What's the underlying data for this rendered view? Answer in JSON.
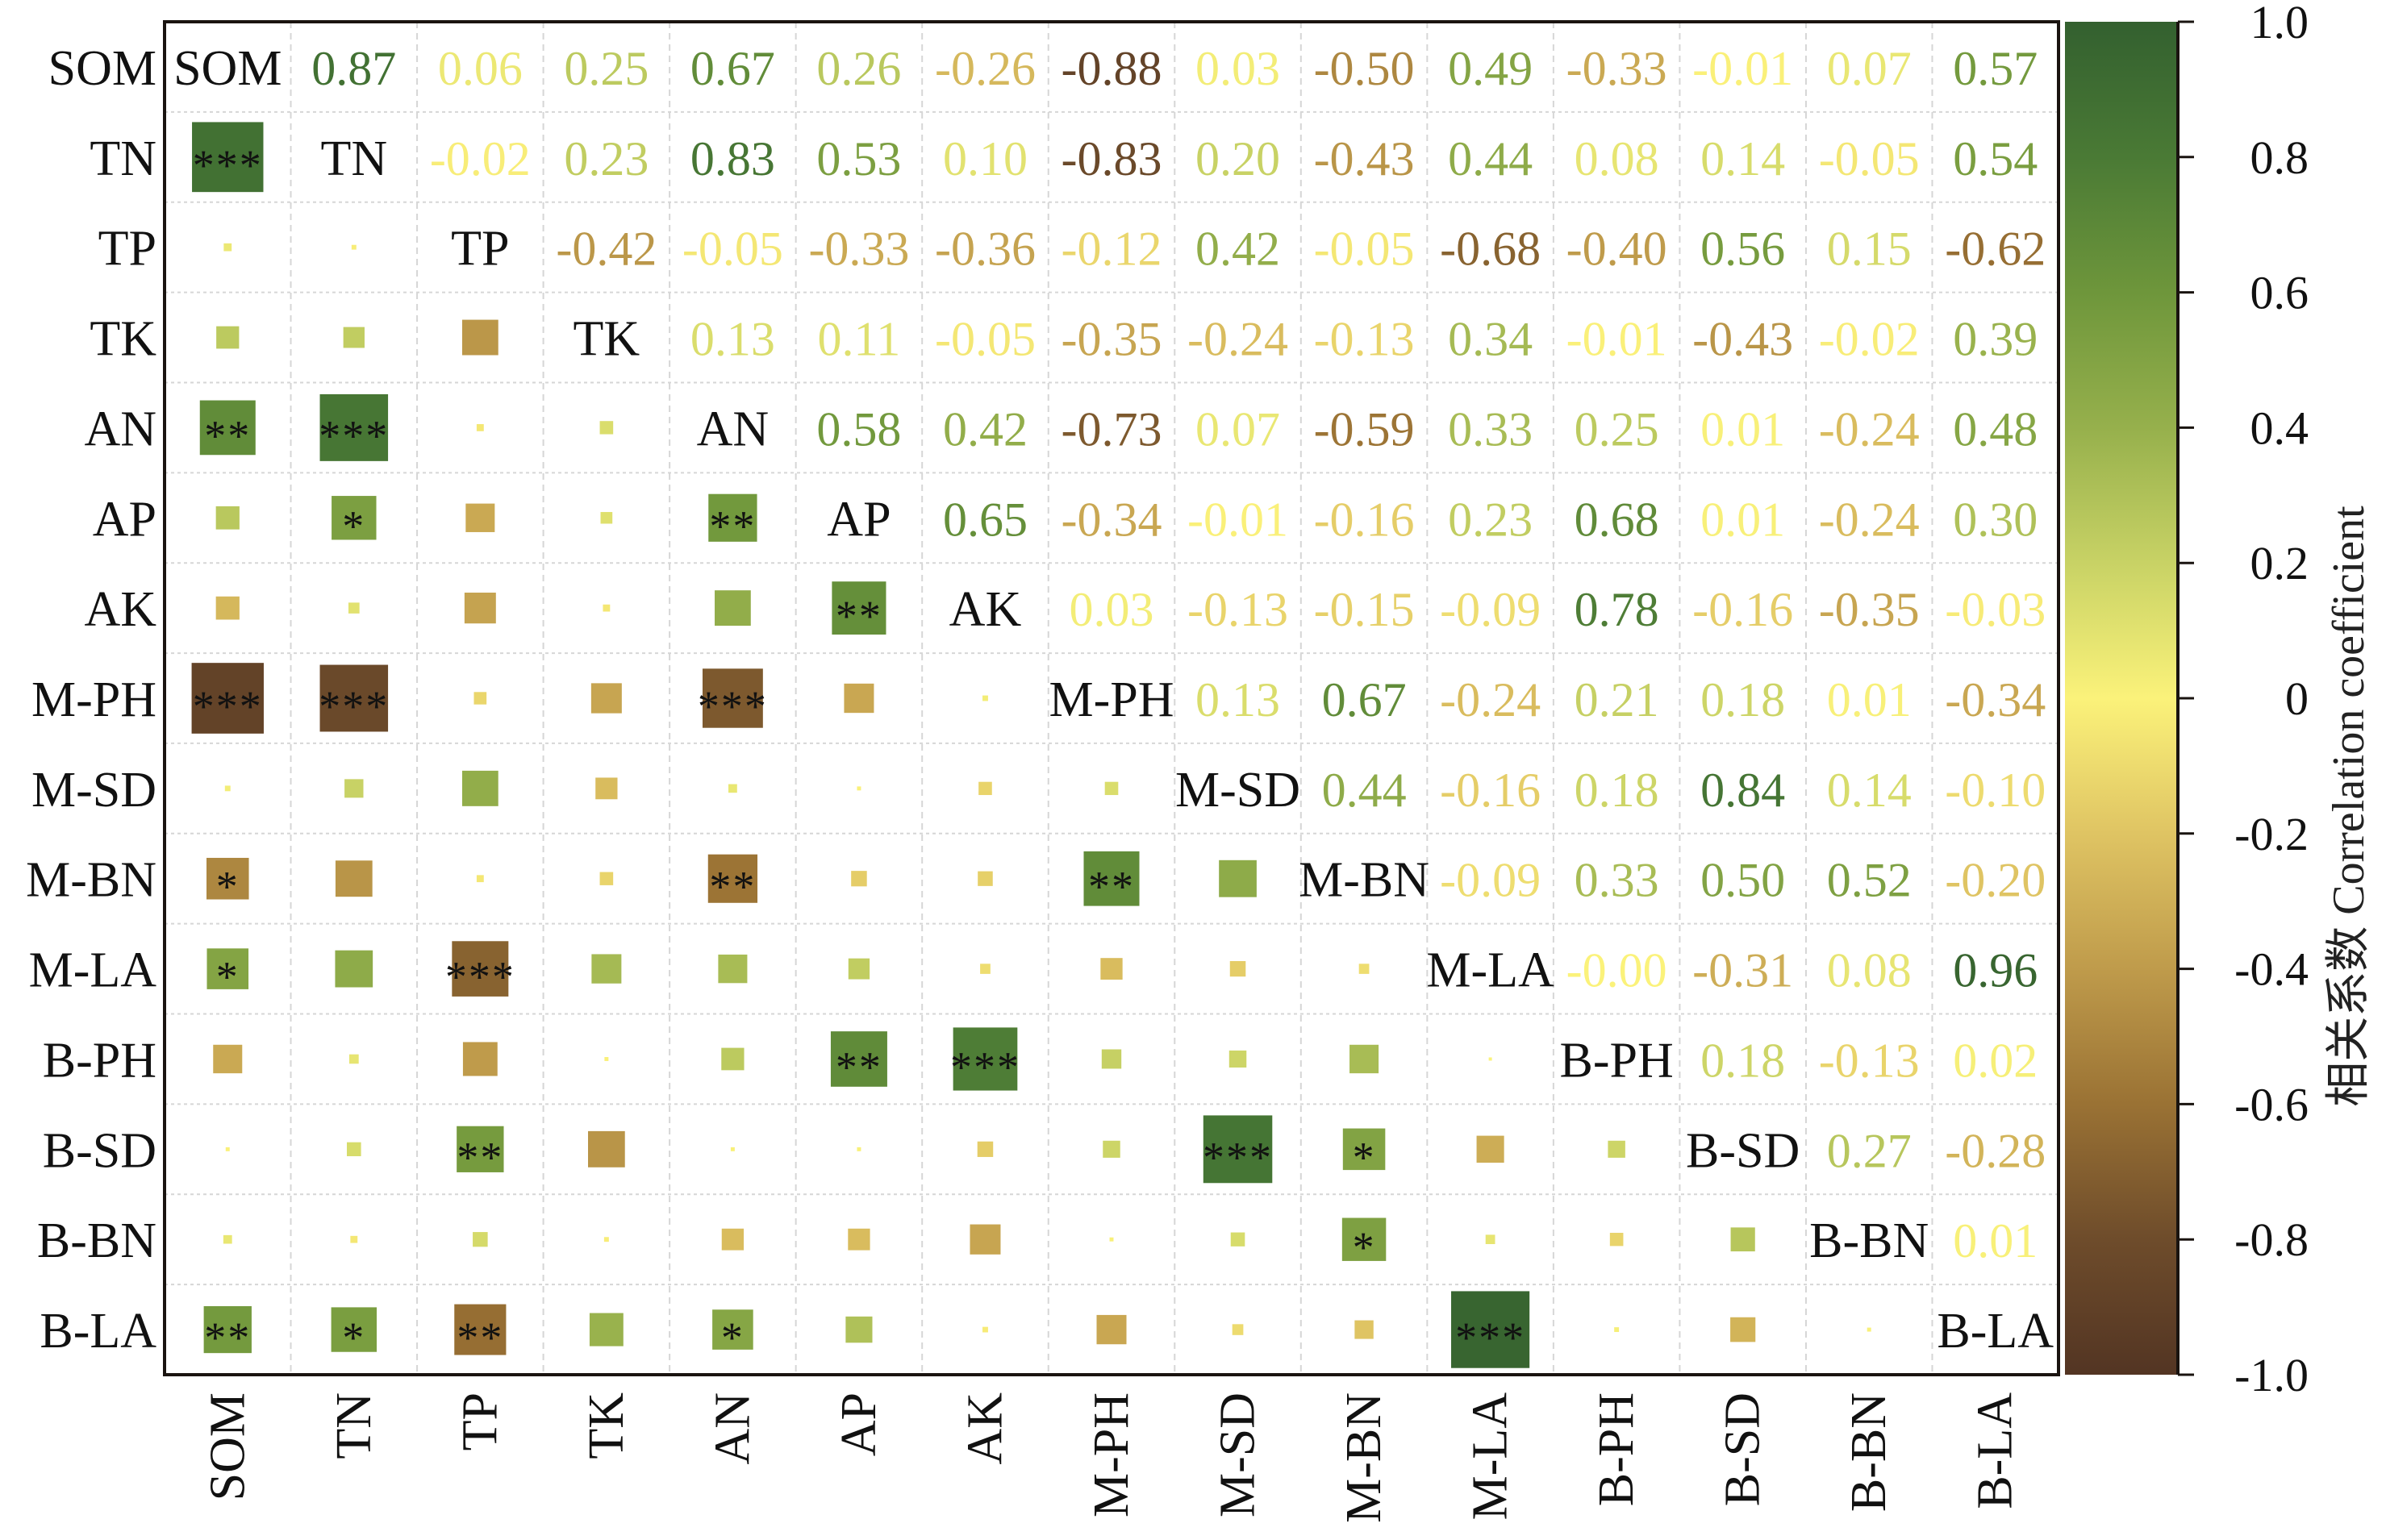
{
  "chart_data": {
    "type": "heatmap",
    "subtype": "correlation-matrix",
    "title": "",
    "variables": [
      "SOM",
      "TN",
      "TP",
      "TK",
      "AN",
      "AP",
      "AK",
      "M-PH",
      "M-SD",
      "M-BN",
      "M-LA",
      "B-PH",
      "B-SD",
      "B-BN",
      "B-LA"
    ],
    "x_tick_labels": [
      "SOM",
      "TN",
      "TP",
      "TK",
      "AN",
      "AP",
      "AK",
      "M-PH",
      "M-SD",
      "M-BN",
      "M-LA",
      "B-PH",
      "B-SD",
      "B-BN",
      "B-LA"
    ],
    "y_tick_labels": [
      "SOM",
      "TN",
      "TP",
      "TK",
      "AN",
      "AP",
      "AK",
      "M-PH",
      "M-SD",
      "M-BN",
      "M-LA",
      "B-PH",
      "B-SD",
      "B-BN",
      "B-LA"
    ],
    "upper_triangle": "numeric values colored by correlation",
    "lower_triangle": "squares sized by |r| and colored by r, with significance stars",
    "diagonal": "variable names",
    "matrix": [
      [
        1.0,
        0.87,
        0.06,
        0.25,
        0.67,
        0.26,
        -0.26,
        -0.88,
        0.03,
        -0.5,
        0.49,
        -0.33,
        -0.01,
        0.07,
        0.57
      ],
      [
        0.87,
        1.0,
        -0.02,
        0.23,
        0.83,
        0.53,
        0.1,
        -0.83,
        0.2,
        -0.43,
        0.44,
        0.08,
        0.14,
        -0.05,
        0.54
      ],
      [
        0.06,
        -0.02,
        1.0,
        -0.42,
        -0.05,
        -0.33,
        -0.36,
        -0.12,
        0.42,
        -0.05,
        -0.68,
        -0.4,
        0.56,
        0.15,
        -0.62
      ],
      [
        0.25,
        0.23,
        -0.42,
        1.0,
        0.13,
        0.11,
        -0.05,
        -0.35,
        -0.24,
        -0.13,
        0.34,
        -0.01,
        -0.43,
        -0.02,
        0.39
      ],
      [
        0.67,
        0.83,
        -0.05,
        0.13,
        1.0,
        0.58,
        0.42,
        -0.73,
        0.07,
        -0.59,
        0.33,
        0.25,
        0.01,
        -0.24,
        0.48
      ],
      [
        0.26,
        0.53,
        -0.33,
        0.11,
        0.58,
        1.0,
        0.65,
        -0.34,
        -0.01,
        -0.16,
        0.23,
        0.68,
        0.01,
        -0.24,
        0.3
      ],
      [
        -0.26,
        0.1,
        -0.36,
        -0.05,
        0.42,
        0.65,
        1.0,
        0.03,
        -0.13,
        -0.15,
        -0.09,
        0.78,
        -0.16,
        -0.35,
        -0.03
      ],
      [
        -0.88,
        -0.83,
        -0.12,
        -0.35,
        -0.73,
        -0.34,
        0.03,
        1.0,
        0.13,
        0.67,
        -0.24,
        0.21,
        0.18,
        0.01,
        -0.34
      ],
      [
        0.03,
        0.2,
        0.42,
        -0.24,
        0.07,
        -0.01,
        -0.13,
        0.13,
        1.0,
        0.44,
        -0.16,
        0.18,
        0.84,
        0.14,
        -0.1
      ],
      [
        -0.5,
        -0.43,
        -0.05,
        -0.13,
        -0.59,
        -0.16,
        -0.15,
        0.67,
        0.44,
        1.0,
        -0.09,
        0.33,
        0.5,
        0.52,
        -0.2
      ],
      [
        0.49,
        0.44,
        -0.68,
        0.34,
        0.33,
        0.23,
        -0.09,
        -0.24,
        -0.16,
        -0.09,
        1.0,
        -0.0,
        -0.31,
        0.08,
        0.96
      ],
      [
        -0.33,
        0.08,
        -0.4,
        -0.01,
        0.25,
        0.68,
        0.78,
        0.21,
        0.18,
        0.33,
        -0.0,
        1.0,
        0.18,
        -0.13,
        0.02
      ],
      [
        -0.01,
        0.14,
        0.56,
        -0.43,
        0.01,
        0.01,
        -0.16,
        0.18,
        0.84,
        0.5,
        -0.31,
        0.18,
        1.0,
        0.27,
        -0.28
      ],
      [
        0.07,
        -0.05,
        0.15,
        -0.02,
        -0.24,
        -0.24,
        -0.35,
        0.01,
        0.14,
        0.52,
        0.08,
        -0.13,
        0.27,
        1.0,
        0.01
      ],
      [
        0.57,
        0.54,
        -0.62,
        0.39,
        0.48,
        0.3,
        -0.03,
        -0.34,
        -0.1,
        -0.2,
        0.96,
        0.02,
        -0.28,
        0.01,
        1.0
      ]
    ],
    "value_labels": [
      [
        "SOM",
        "0.87",
        "0.06",
        "0.25",
        "0.67",
        "0.26",
        "-0.26",
        "-0.88",
        "0.03",
        "-0.50",
        "0.49",
        "-0.33",
        "-0.01",
        "0.07",
        "0.57"
      ],
      [
        "",
        "TN",
        "-0.02",
        "0.23",
        "0.83",
        "0.53",
        "0.10",
        "-0.83",
        "0.20",
        "-0.43",
        "0.44",
        "0.08",
        "0.14",
        "-0.05",
        "0.54"
      ],
      [
        "",
        "",
        "TP",
        "-0.42",
        "-0.05",
        "-0.33",
        "-0.36",
        "-0.12",
        "0.42",
        "-0.05",
        "-0.68",
        "-0.40",
        "0.56",
        "0.15",
        "-0.62"
      ],
      [
        "",
        "",
        "",
        "TK",
        "0.13",
        "0.11",
        "-0.05",
        "-0.35",
        "-0.24",
        "-0.13",
        "0.34",
        "-0.01",
        "-0.43",
        "-0.02",
        "0.39"
      ],
      [
        "",
        "",
        "",
        "",
        "AN",
        "0.58",
        "0.42",
        "-0.73",
        "0.07",
        "-0.59",
        "0.33",
        "0.25",
        "0.01",
        "-0.24",
        "0.48"
      ],
      [
        "",
        "",
        "",
        "",
        "",
        "AP",
        "0.65",
        "-0.34",
        "-0.01",
        "-0.16",
        "0.23",
        "0.68",
        "0.01",
        "-0.24",
        "0.30"
      ],
      [
        "",
        "",
        "",
        "",
        "",
        "",
        "AK",
        "0.03",
        "-0.13",
        "-0.15",
        "-0.09",
        "0.78",
        "-0.16",
        "-0.35",
        "-0.03"
      ],
      [
        "",
        "",
        "",
        "",
        "",
        "",
        "",
        "M-PH",
        "0.13",
        "0.67",
        "-0.24",
        "0.21",
        "0.18",
        "0.01",
        "-0.34"
      ],
      [
        "",
        "",
        "",
        "",
        "",
        "",
        "",
        "",
        "M-SD",
        "0.44",
        "-0.16",
        "0.18",
        "0.84",
        "0.14",
        "-0.10"
      ],
      [
        "",
        "",
        "",
        "",
        "",
        "",
        "",
        "",
        "",
        "M-BN",
        "-0.09",
        "0.33",
        "0.50",
        "0.52",
        "-0.20"
      ],
      [
        "",
        "",
        "",
        "",
        "",
        "",
        "",
        "",
        "",
        "",
        "M-LA",
        "-0.00",
        "-0.31",
        "0.08",
        "0.96"
      ],
      [
        "",
        "",
        "",
        "",
        "",
        "",
        "",
        "",
        "",
        "",
        "",
        "B-PH",
        "0.18",
        "-0.13",
        "0.02"
      ],
      [
        "",
        "",
        "",
        "",
        "",
        "",
        "",
        "",
        "",
        "",
        "",
        "",
        "B-SD",
        "0.27",
        "-0.28"
      ],
      [
        "",
        "",
        "",
        "",
        "",
        "",
        "",
        "",
        "",
        "",
        "",
        "",
        "",
        "B-BN",
        "0.01"
      ],
      [
        "",
        "",
        "",
        "",
        "",
        "",
        "",
        "",
        "",
        "",
        "",
        "",
        "",
        "",
        "B-LA"
      ]
    ],
    "significance": [
      [
        "",
        "",
        "",
        "",
        "",
        "",
        "",
        "",
        "",
        "",
        "",
        "",
        "",
        "",
        ""
      ],
      [
        "***",
        "",
        "",
        "",
        "",
        "",
        "",
        "",
        "",
        "",
        "",
        "",
        "",
        "",
        ""
      ],
      [
        "",
        "",
        "",
        "",
        "",
        "",
        "",
        "",
        "",
        "",
        "",
        "",
        "",
        "",
        ""
      ],
      [
        "",
        "",
        "",
        "",
        "",
        "",
        "",
        "",
        "",
        "",
        "",
        "",
        "",
        "",
        ""
      ],
      [
        "**",
        "***",
        "",
        "",
        "",
        "",
        "",
        "",
        "",
        "",
        "",
        "",
        "",
        "",
        ""
      ],
      [
        "",
        "*",
        "",
        "",
        "**",
        "",
        "",
        "",
        "",
        "",
        "",
        "",
        "",
        "",
        ""
      ],
      [
        "",
        "",
        "",
        "",
        "",
        "**",
        "",
        "",
        "",
        "",
        "",
        "",
        "",
        "",
        ""
      ],
      [
        "***",
        "***",
        "",
        "",
        "***",
        "",
        "",
        "",
        "",
        "",
        "",
        "",
        "",
        "",
        ""
      ],
      [
        "",
        "",
        "",
        "",
        "",
        "",
        "",
        "",
        "",
        "",
        "",
        "",
        "",
        "",
        ""
      ],
      [
        "*",
        "",
        "",
        "",
        "**",
        "",
        "",
        "**",
        "",
        "",
        "",
        "",
        "",
        "",
        ""
      ],
      [
        "*",
        "",
        "***",
        "",
        "",
        "",
        "",
        "",
        "",
        "",
        "",
        "",
        "",
        "",
        ""
      ],
      [
        "",
        "",
        "",
        "",
        "",
        "**",
        "***",
        "",
        "",
        "",
        "",
        "",
        "",
        "",
        ""
      ],
      [
        "",
        "",
        "**",
        "",
        "",
        "",
        "",
        "",
        "***",
        "*",
        "",
        "",
        "",
        "",
        ""
      ],
      [
        "",
        "",
        "",
        "",
        "",
        "",
        "",
        "",
        "",
        "*",
        "",
        "",
        "",
        "",
        ""
      ],
      [
        "**",
        "*",
        "**",
        "",
        "*",
        "",
        "",
        "",
        "",
        "",
        "***",
        "",
        "",
        "",
        ""
      ]
    ],
    "colorbar": {
      "label": "相关系数 Correlation coefficient",
      "range": [
        -1.0,
        1.0
      ],
      "ticks": [
        1.0,
        0.8,
        0.6,
        0.4,
        0.2,
        0,
        -0.2,
        -0.4,
        -0.6,
        -0.8,
        -1.0
      ],
      "tick_labels": [
        "1.0",
        "0.8",
        "0.6",
        "0.4",
        "0.2",
        "0",
        "-0.2",
        "-0.4",
        "-0.6",
        "-0.8",
        "-1.0"
      ],
      "colors": {
        "pos_1": "#33602f",
        "pos_0_8": "#4a7a35",
        "pos_0_6": "#6e963b",
        "pos_0_4": "#96b04c",
        "pos_0_2": "#c8d265",
        "zero": "#fbf27a",
        "neg_0_2": "#dfc463",
        "neg_0_4": "#bf9b4b",
        "neg_0_6": "#9a7234",
        "neg_0_8": "#6e4c2b",
        "neg_1": "#533523"
      },
      "position": "right"
    },
    "grid": true,
    "legend": "colorbar-right"
  }
}
